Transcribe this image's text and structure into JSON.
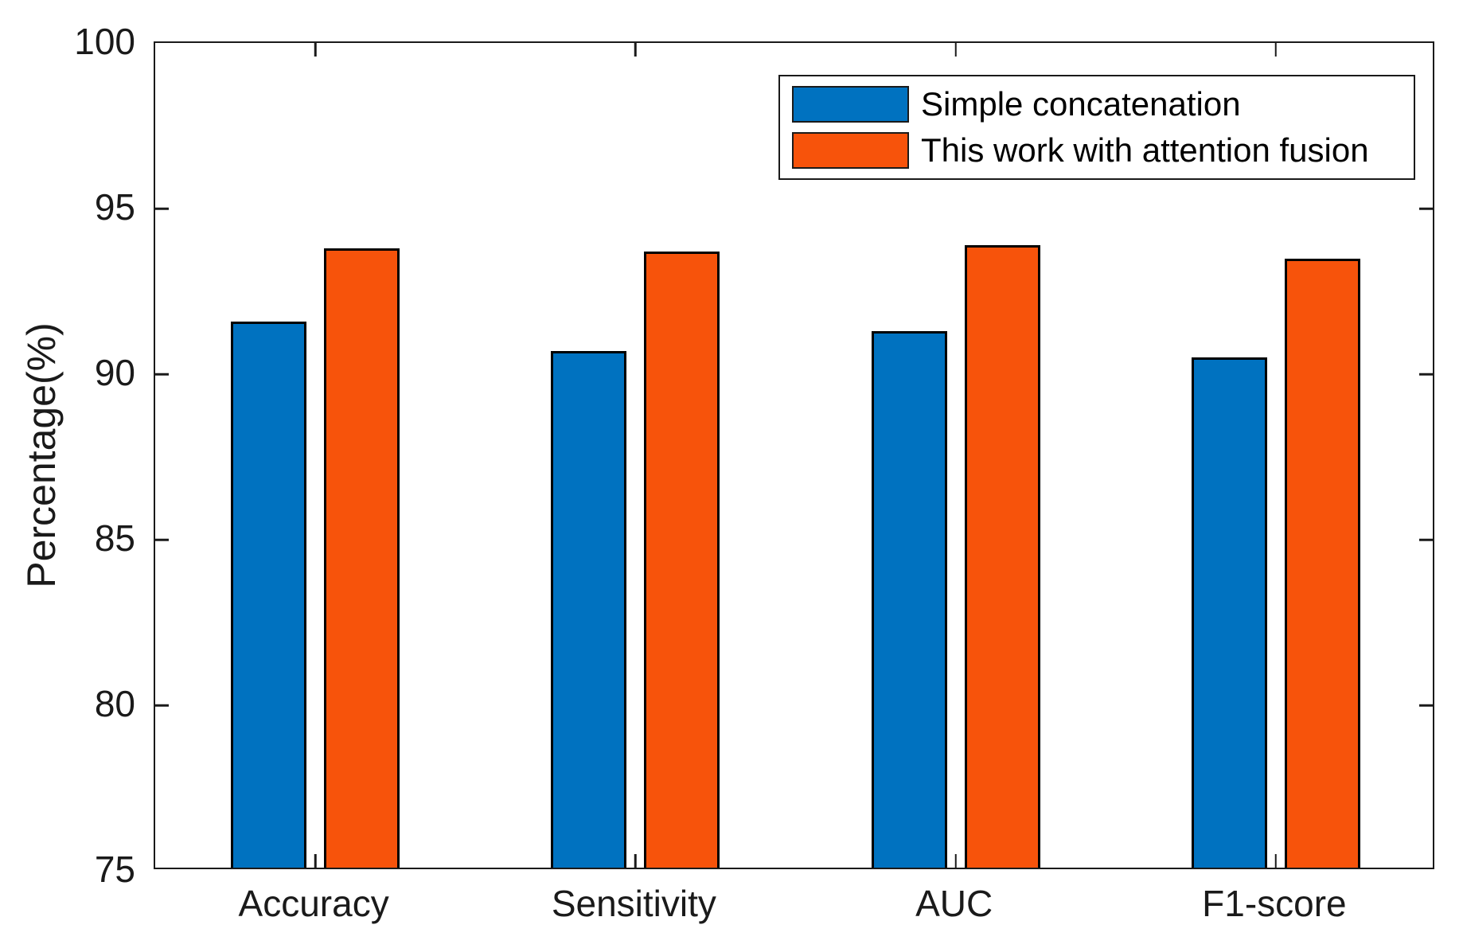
{
  "figure": {
    "background": "#ffffff",
    "axis_color": "#1a1a1a"
  },
  "chart_data": {
    "type": "bar",
    "title": "",
    "xlabel": "",
    "ylabel": "Percentage(%)",
    "categories": [
      "Accuracy",
      "Sensitivity",
      "AUC",
      "F1-score"
    ],
    "series": [
      {
        "name": "Simple concatenation",
        "color": "#0072C0",
        "values": [
          91.5,
          90.6,
          91.2,
          90.4
        ]
      },
      {
        "name": "This work with attention fusion",
        "color": "#F7530B",
        "values": [
          93.7,
          93.6,
          93.8,
          93.4
        ]
      }
    ],
    "ylim": [
      75,
      100
    ],
    "yticks": [
      75,
      80,
      85,
      90,
      95,
      100
    ],
    "grid": false,
    "legend_position": "top-right",
    "bar_edge_color": "#000000"
  }
}
